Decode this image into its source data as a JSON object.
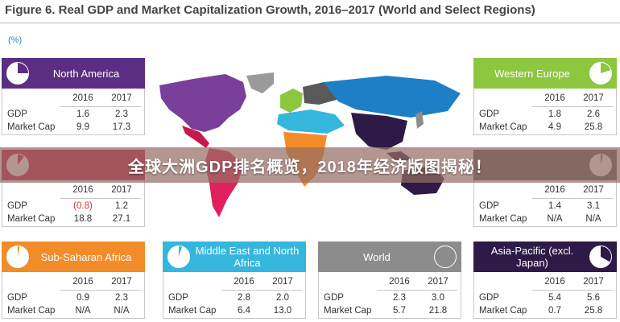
{
  "figure_title": "Figure 6. Real GDP and Market Capitalization Growth, 2016–2017 (World and Select Regions)",
  "unit_label": "(%)",
  "banner": "全球大洲GDP排名概览，2018年经济版图揭秘！",
  "row_labels": {
    "gdp": "GDP",
    "market_cap": "Market Cap"
  },
  "regions": [
    {
      "key": "north-america",
      "name": "North America",
      "color": "#5b2e83",
      "years": [
        "2016",
        "2017"
      ],
      "gdp": [
        "1.6",
        "2.3"
      ],
      "market_cap": [
        "9.9",
        "17.3"
      ],
      "pie_share": 0.25
    },
    {
      "key": "latin-america",
      "name": "",
      "color": "#c9184a",
      "years": [
        "2016",
        "2017"
      ],
      "gdp": [
        "(0.8)",
        "1.2"
      ],
      "market_cap": [
        "18.8",
        "27.1"
      ],
      "pie_share": 0.1
    },
    {
      "key": "sub-saharan-africa",
      "name": "Sub-Saharan Africa",
      "color": "#f28c28",
      "years": [
        "2016",
        "2017"
      ],
      "gdp": [
        "0.9",
        "2.3"
      ],
      "market_cap": [
        "N/A",
        "N/A"
      ],
      "pie_share": 0.03
    },
    {
      "key": "middle-east-north-africa",
      "name": "Middle East and North Africa",
      "color": "#35b6dd",
      "years": [
        "2016",
        "2017"
      ],
      "gdp": [
        "2.8",
        "2.0"
      ],
      "market_cap": [
        "6.4",
        "13.0"
      ],
      "pie_share": 0.05
    },
    {
      "key": "world",
      "name": "World",
      "color": "#8c8c8c",
      "years": [
        "2016",
        "2017"
      ],
      "gdp": [
        "2.3",
        "3.0"
      ],
      "market_cap": [
        "5.7",
        "21.8"
      ],
      "pie_share": 0.0
    },
    {
      "key": "asia-pacific",
      "name": "Asia-Pacific (excl. Japan)",
      "color": "#2e1a47",
      "years": [
        "2016",
        "2017"
      ],
      "gdp": [
        "5.4",
        "5.6"
      ],
      "market_cap": [
        "0.7",
        "25.8"
      ],
      "pie_share": 0.33
    },
    {
      "key": "western-europe",
      "name": "Western Europe",
      "color": "#8dc63f",
      "years": [
        "2016",
        "2017"
      ],
      "gdp": [
        "1.8",
        "2.6"
      ],
      "market_cap": [
        "4.9",
        "25.8"
      ],
      "pie_share": 0.2
    },
    {
      "key": "eastern-europe",
      "name": "",
      "color": "#595959",
      "years": [
        "2016",
        "2017"
      ],
      "gdp": [
        "1.4",
        "3.1"
      ],
      "market_cap": [
        "N/A",
        "N/A"
      ],
      "pie_share": 0.03
    }
  ]
}
